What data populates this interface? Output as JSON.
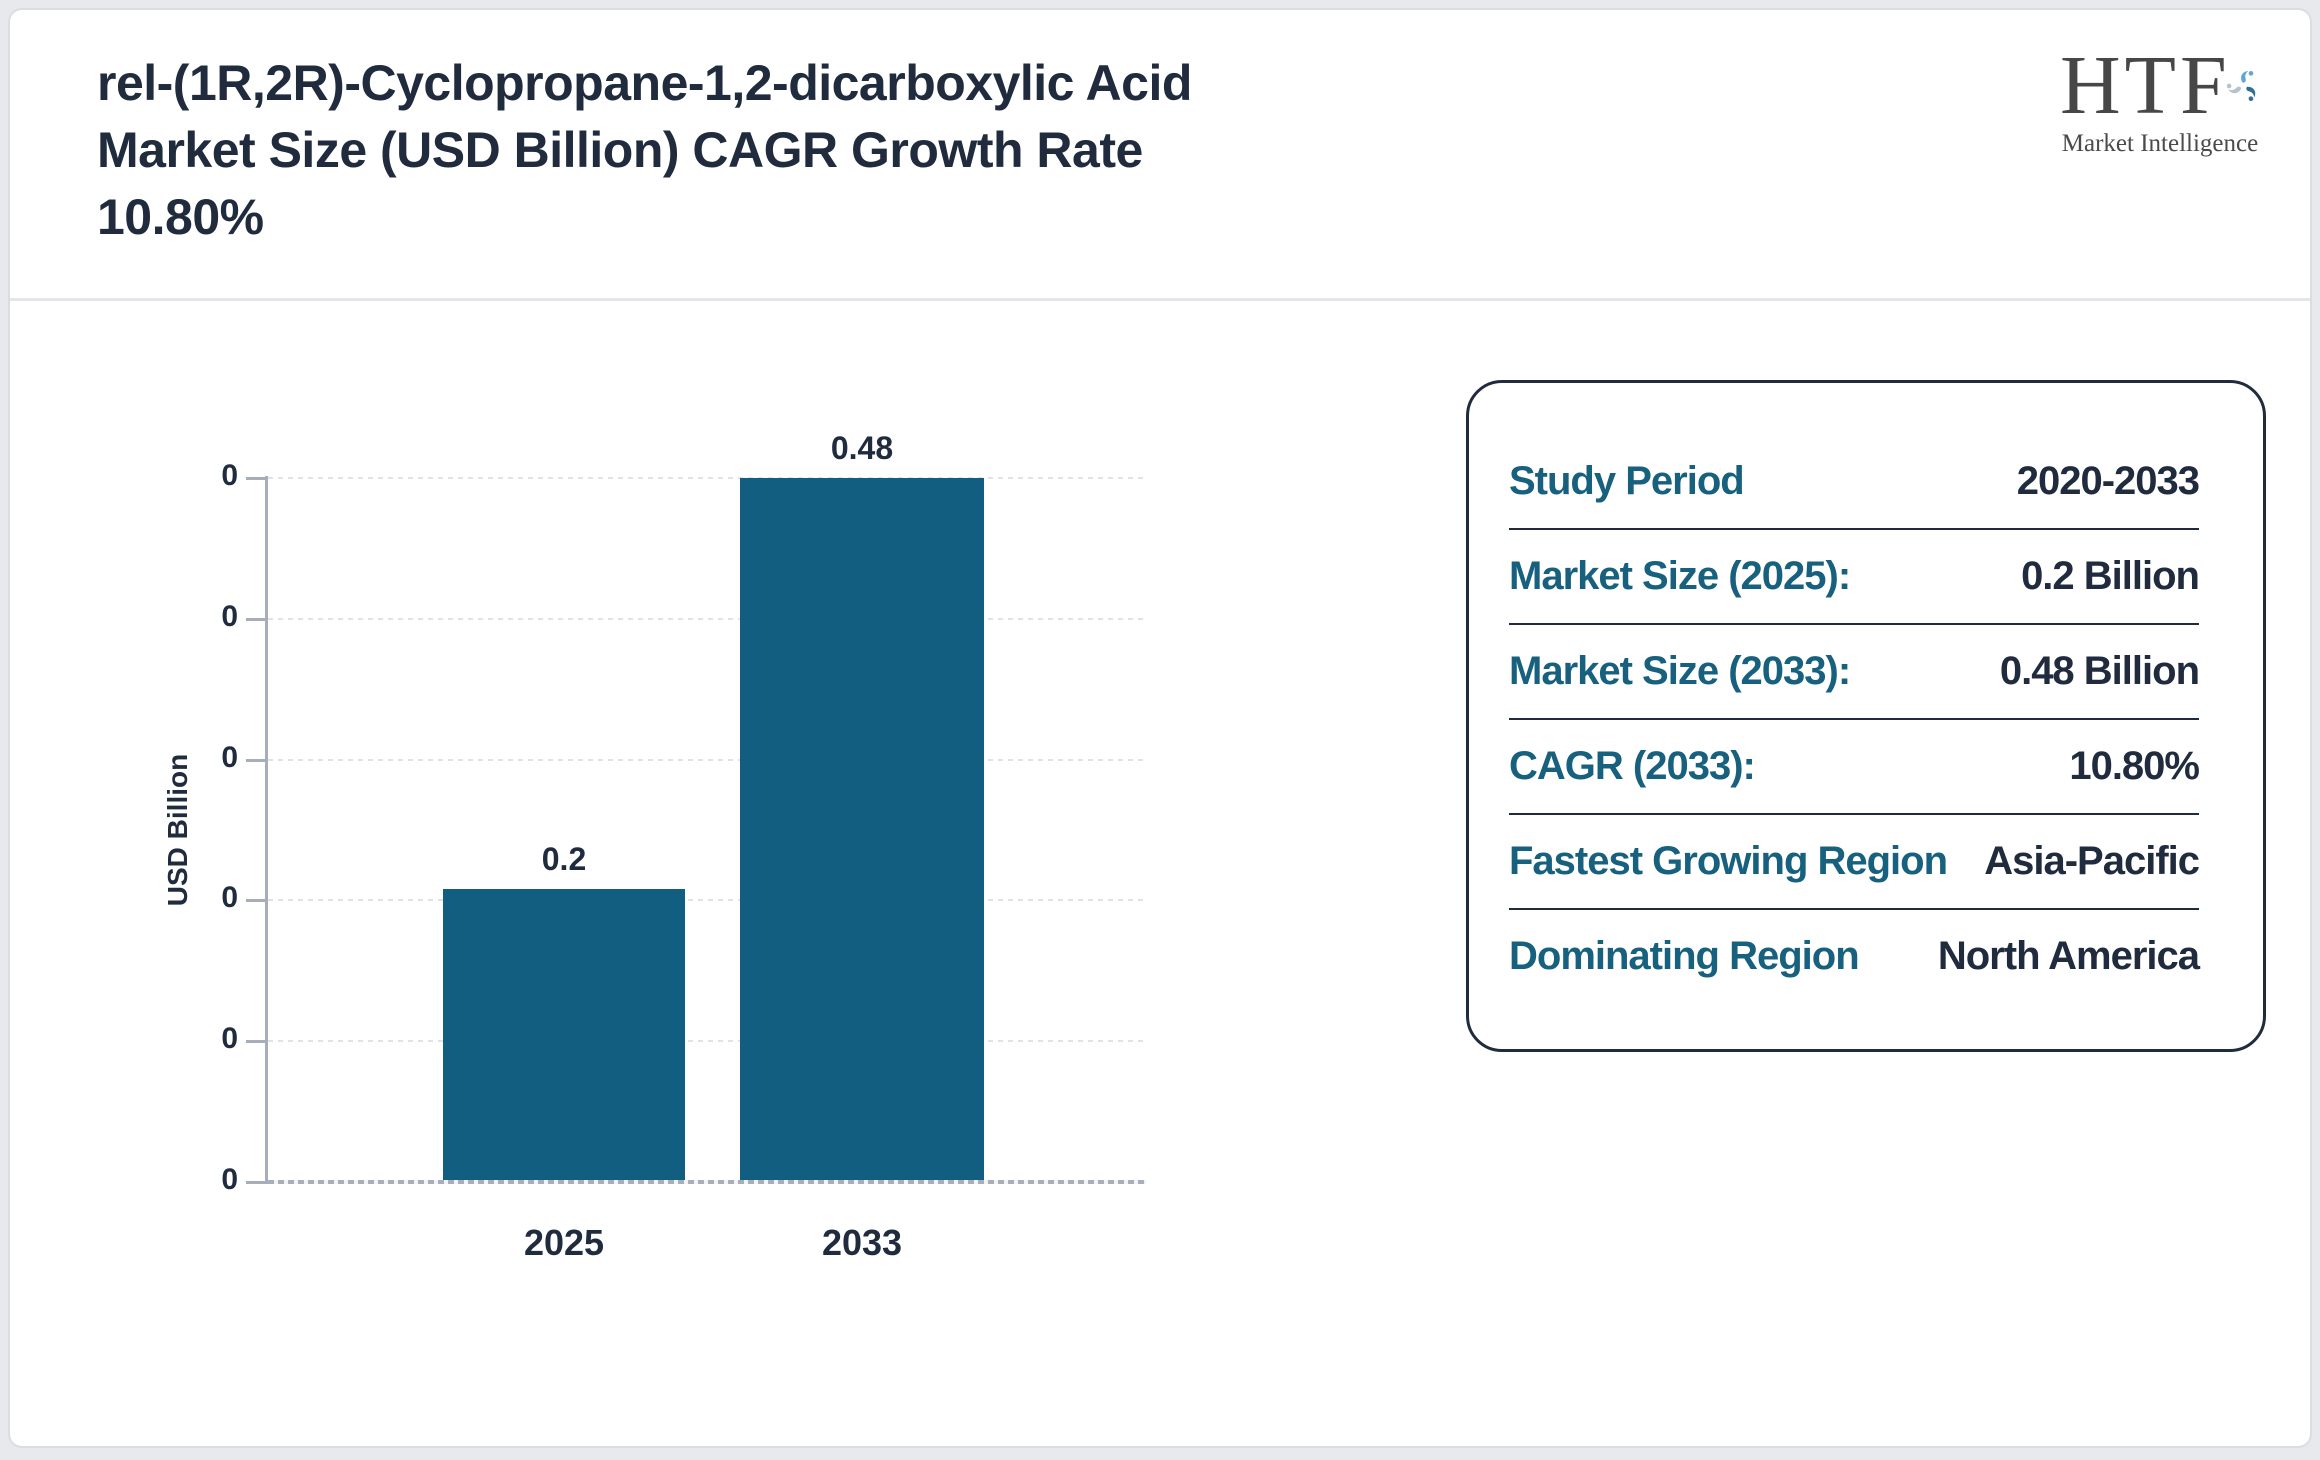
{
  "header": {
    "title_lines": [
      "rel-(1R,2R)-Cyclopropane-1,2-dicarboxylic Acid",
      "Market Size (USD Billion) CAGR Growth Rate",
      "10.80%"
    ]
  },
  "logo": {
    "text": "HTF",
    "subtext": "Market Intelligence"
  },
  "chart_data": {
    "type": "bar",
    "title": "rel-(1R,2R)-Cyclopropane-1,2-dicarboxylic Acid Market Size (USD Billion)",
    "categories": [
      "2025",
      "2033"
    ],
    "values": [
      0.2,
      0.48
    ],
    "bar_labels": [
      "0.2",
      "0.48"
    ],
    "xlabel": "",
    "ylabel": "USD Billion",
    "ylim": [
      0,
      0.48
    ],
    "y_tick_labels": [
      "0",
      "0",
      "0",
      "0",
      "0",
      "0"
    ],
    "grid": "horizontal-dotted",
    "legend": "none",
    "bar_color": "#115e80"
  },
  "info_panel": {
    "rows": [
      {
        "label": "Study Period",
        "value": "2020-2033"
      },
      {
        "label": "Market Size (2025):",
        "value": "0.2 Billion"
      },
      {
        "label": "Market Size (2033):",
        "value": "0.48 Billion"
      },
      {
        "label": "CAGR (2033):",
        "value": "10.80%"
      },
      {
        "label": "Fastest Growing Region",
        "value": "Asia-Pacific"
      },
      {
        "label": "Dominating Region",
        "value": "North America"
      }
    ]
  },
  "colors": {
    "accent_teal": "#17617f",
    "navy_text": "#202c3e",
    "bar_teal": "#115e80",
    "axis_gray": "#a8aeb9",
    "grid_gray": "#e0e2e6"
  }
}
